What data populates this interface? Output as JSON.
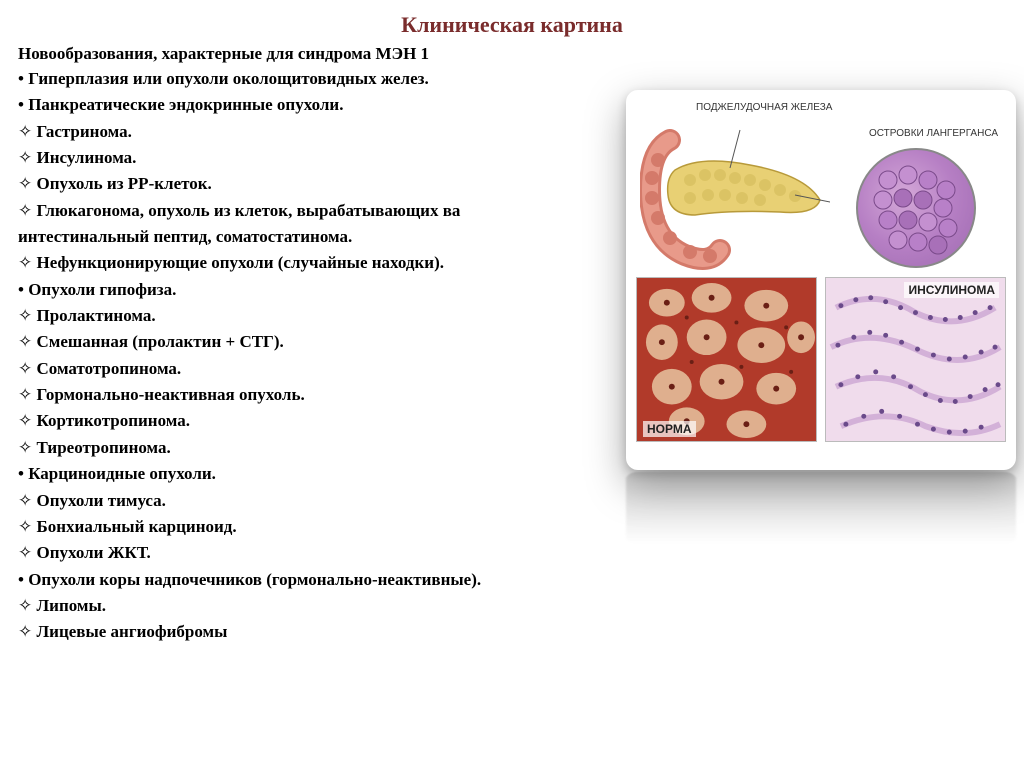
{
  "title": "Клиническая картина",
  "subtitle": "Новообразования, характерные для синдрома МЭН 1",
  "lines": [
    {
      "type": "bullet",
      "text": "Гиперплазия или опухоли околощитовидных желез."
    },
    {
      "type": "bullet",
      "text": "Панкреатические эндокринные опухоли."
    },
    {
      "type": "diamond",
      "text": "Гастринома."
    },
    {
      "type": "diamond",
      "text": "Инсулинома."
    },
    {
      "type": "diamond",
      "text": "Опухоль из PP-клеток."
    },
    {
      "type": "diamond",
      "text": "Глюкагонома, опухоль из клеток, вырабатывающих ва"
    },
    {
      "type": "plain",
      "text": "интестинальный пептид, соматостатинома."
    },
    {
      "type": "diamond",
      "text": "Нефункционирующие опухоли (случайные находки)."
    },
    {
      "type": "bullet",
      "text": "Опухоли гипофиза."
    },
    {
      "type": "diamond",
      "text": "Пролактинома."
    },
    {
      "type": "diamond",
      "text": "Смешанная (пролактин + СТГ)."
    },
    {
      "type": "diamond",
      "text": "Соматотропинома."
    },
    {
      "type": "diamond",
      "text": "Гормонально-неактивная опухоль."
    },
    {
      "type": "diamond",
      "text": "Кортикотропинома."
    },
    {
      "type": "diamond",
      "text": "Тиреотропинома."
    },
    {
      "type": "bullet",
      "text": "Карциноидные опухоли."
    },
    {
      "type": "diamond",
      "text": "Опухоли тимуса."
    },
    {
      "type": "diamond",
      "text": "Бонхиальный карциноид."
    },
    {
      "type": "diamond",
      "text": "Опухоли ЖКТ."
    },
    {
      "type": "bullet",
      "text": "Опухоли коры надпочечников (гормонально-неактивные)."
    },
    {
      "type": "diamond",
      "text": "Липомы."
    },
    {
      "type": "diamond",
      "text": "Лицевые ангиофибромы"
    }
  ],
  "diagram": {
    "pancreas_label": "ПОДЖЕЛУДОЧНАЯ ЖЕЛЕЗА",
    "islet_label": "ОСТРОВКИ ЛАНГЕРГАНСА",
    "histo_left_label": "НОРМА",
    "histo_right_label": "ИНСУЛИНОМА",
    "colors": {
      "pancreas_fill": "#e8d074",
      "pancreas_stroke": "#b89a3a",
      "duodenum_fill": "#e89a8a",
      "islet_bg1": "#d4a8d8",
      "islet_bg2": "#9e6ab0",
      "histo_left_base": "#b13a2a",
      "histo_left_light": "#e8c4a0",
      "histo_right_base": "#e8c8e0",
      "histo_right_dark": "#8a5a9a",
      "title_color": "#7a2c2c"
    }
  }
}
